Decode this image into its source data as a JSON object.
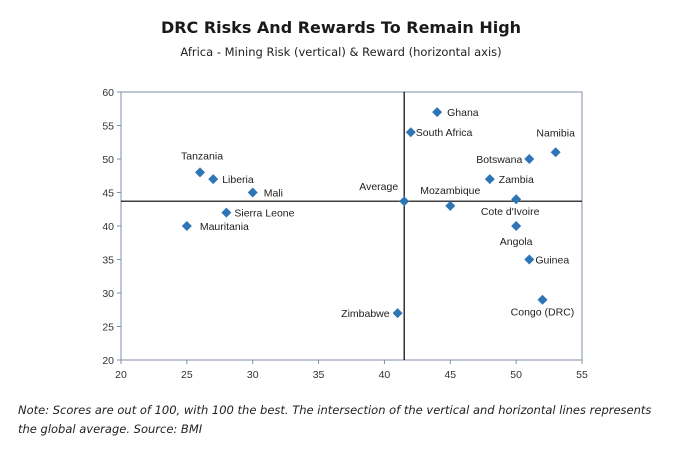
{
  "chart_data": {
    "type": "scatter",
    "title": "DRC Risks And Rewards To Remain High",
    "subtitle": "Africa - Mining Risk (vertical) & Reward (horizontal axis)",
    "xlim": [
      20,
      55
    ],
    "ylim": [
      20,
      60
    ],
    "x_ticks": [
      20,
      25,
      30,
      35,
      40,
      45,
      50,
      55
    ],
    "y_ticks": [
      20,
      25,
      30,
      35,
      40,
      45,
      50,
      55,
      60
    ],
    "average": {
      "label": "Average",
      "x": 41.5,
      "y": 43.7
    },
    "marker_color": "#2e75b6",
    "points": [
      {
        "label": "Ghana",
        "x": 44,
        "y": 57
      },
      {
        "label": "South Africa",
        "x": 42,
        "y": 54
      },
      {
        "label": "Namibia",
        "x": 53,
        "y": 51
      },
      {
        "label": "Botswana",
        "x": 51,
        "y": 50
      },
      {
        "label": "Tanzania",
        "x": 26,
        "y": 48
      },
      {
        "label": "Liberia",
        "x": 27,
        "y": 47
      },
      {
        "label": "Zambia",
        "x": 48,
        "y": 47
      },
      {
        "label": "Mali",
        "x": 30,
        "y": 45
      },
      {
        "label": "Mozambique",
        "x": 45,
        "y": 43
      },
      {
        "label": "Cote d'Ivoire",
        "x": 50,
        "y": 44
      },
      {
        "label": "Sierra Leone",
        "x": 28,
        "y": 42
      },
      {
        "label": "Mauritania",
        "x": 25,
        "y": 40
      },
      {
        "label": "Angola",
        "x": 50,
        "y": 40
      },
      {
        "label": "Guinea",
        "x": 51,
        "y": 35
      },
      {
        "label": "Congo (DRC)",
        "x": 52,
        "y": 29
      },
      {
        "label": "Zimbabwe",
        "x": 41,
        "y": 27
      }
    ]
  },
  "note": "Note: Scores are out of 100, with 100 the best. The intersection of the vertical and horizontal lines represents the global average. Source: BMI"
}
